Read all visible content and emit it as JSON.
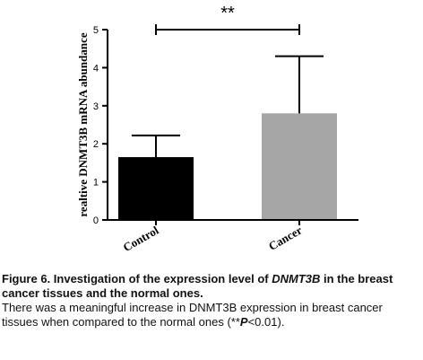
{
  "chart_data": {
    "type": "bar",
    "categories": [
      "Control",
      "Cancer"
    ],
    "values": [
      1.65,
      2.8
    ],
    "error_upper": [
      2.22,
      4.3
    ],
    "colors": [
      "#000000",
      "#a6a6a6"
    ],
    "ylabel": "realtive DNMT3B mRNA abundance",
    "ylim": [
      0,
      5
    ],
    "yticks": [
      "0",
      "1",
      "2",
      "3",
      "4",
      "5"
    ],
    "significance": "**",
    "grid": false
  },
  "caption": {
    "title_prefix": "Figure 6. Investigation of the expression level of ",
    "title_gene": "DNMT3B",
    "title_suffix": " in the breast cancer tissues and the normal ones.",
    "body_prefix": "There was a meaningful increase in DNMT3B expression in breast cancer tissues when compared to the normal ones (**",
    "body_p": "P",
    "body_suffix": "<0.01)."
  }
}
